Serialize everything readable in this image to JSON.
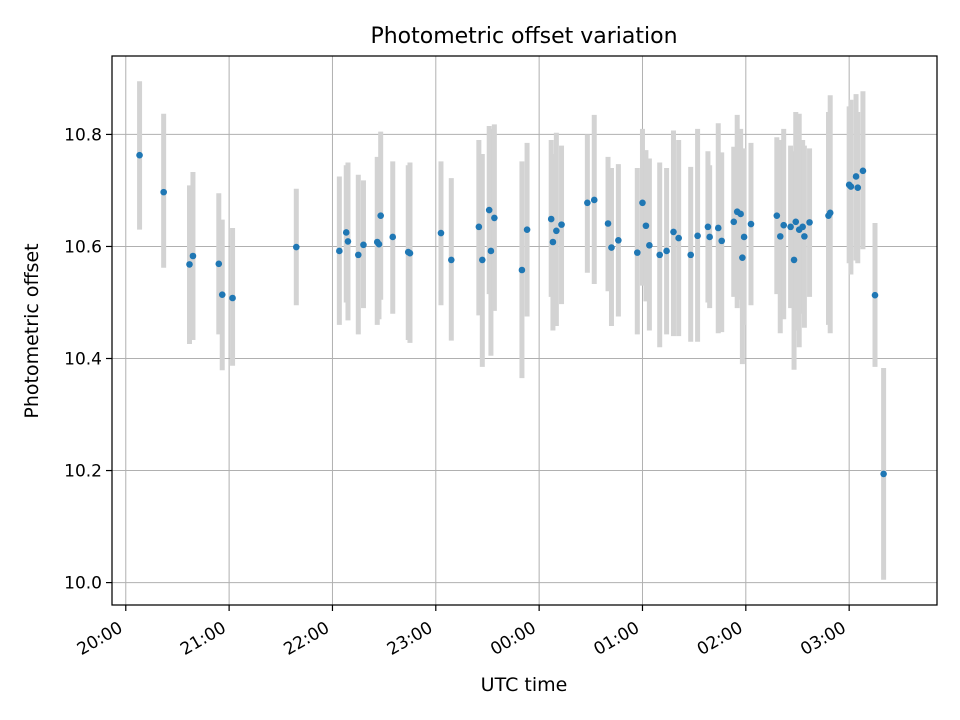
{
  "chart_data": {
    "type": "scatter",
    "title": "Photometric offset variation",
    "xlabel": "UTC time",
    "ylabel": "Photometric offset",
    "x_axis": {
      "kind": "time",
      "range": [
        "19:52",
        "03:51"
      ],
      "ticks": [
        "20:00",
        "21:00",
        "22:00",
        "23:00",
        "00:00",
        "01:00",
        "02:00",
        "03:00"
      ]
    },
    "y_axis": {
      "range": [
        9.96,
        10.94
      ],
      "ticks": [
        "10.0",
        "10.2",
        "10.4",
        "10.6",
        "10.8"
      ]
    },
    "grid": true,
    "colors": {
      "marker": "#1f77b4",
      "errorbar": "#d3d3d3",
      "grid": "#b0b0b0",
      "axes": "#000000"
    },
    "points": [
      {
        "t": "20:08",
        "y": 10.763,
        "lo": 10.63,
        "hi": 10.895
      },
      {
        "t": "20:22",
        "y": 10.697,
        "lo": 10.562,
        "hi": 10.837
      },
      {
        "t": "20:37",
        "y": 10.568,
        "lo": 10.426,
        "hi": 10.709
      },
      {
        "t": "20:39",
        "y": 10.583,
        "lo": 10.433,
        "hi": 10.733
      },
      {
        "t": "20:54",
        "y": 10.569,
        "lo": 10.443,
        "hi": 10.695
      },
      {
        "t": "20:56",
        "y": 10.514,
        "lo": 10.379,
        "hi": 10.648
      },
      {
        "t": "21:02",
        "y": 10.508,
        "lo": 10.387,
        "hi": 10.633
      },
      {
        "t": "21:39",
        "y": 10.599,
        "lo": 10.495,
        "hi": 10.703
      },
      {
        "t": "22:04",
        "y": 10.592,
        "lo": 10.46,
        "hi": 10.725
      },
      {
        "t": "22:08",
        "y": 10.625,
        "lo": 10.5,
        "hi": 10.745
      },
      {
        "t": "22:09",
        "y": 10.609,
        "lo": 10.468,
        "hi": 10.75
      },
      {
        "t": "22:15",
        "y": 10.585,
        "lo": 10.443,
        "hi": 10.728
      },
      {
        "t": "22:18",
        "y": 10.603,
        "lo": 10.49,
        "hi": 10.718
      },
      {
        "t": "22:26",
        "y": 10.608,
        "lo": 10.46,
        "hi": 10.76
      },
      {
        "t": "22:27",
        "y": 10.604,
        "lo": 10.47,
        "hi": 10.738
      },
      {
        "t": "22:28",
        "y": 10.655,
        "lo": 10.505,
        "hi": 10.805
      },
      {
        "t": "22:35",
        "y": 10.617,
        "lo": 10.48,
        "hi": 10.752
      },
      {
        "t": "22:44",
        "y": 10.59,
        "lo": 10.433,
        "hi": 10.745
      },
      {
        "t": "22:45",
        "y": 10.588,
        "lo": 10.428,
        "hi": 10.75
      },
      {
        "t": "23:03",
        "y": 10.624,
        "lo": 10.495,
        "hi": 10.752
      },
      {
        "t": "23:09",
        "y": 10.576,
        "lo": 10.432,
        "hi": 10.722
      },
      {
        "t": "23:25",
        "y": 10.635,
        "lo": 10.477,
        "hi": 10.79
      },
      {
        "t": "23:27",
        "y": 10.576,
        "lo": 10.385,
        "hi": 10.765
      },
      {
        "t": "23:31",
        "y": 10.665,
        "lo": 10.515,
        "hi": 10.815
      },
      {
        "t": "23:32",
        "y": 10.592,
        "lo": 10.405,
        "hi": 10.81
      },
      {
        "t": "23:34",
        "y": 10.651,
        "lo": 10.485,
        "hi": 10.818
      },
      {
        "t": "23:50",
        "y": 10.558,
        "lo": 10.365,
        "hi": 10.752
      },
      {
        "t": "23:53",
        "y": 10.63,
        "lo": 10.475,
        "hi": 10.785
      },
      {
        "t": "00:07",
        "y": 10.649,
        "lo": 10.51,
        "hi": 10.79
      },
      {
        "t": "00:08",
        "y": 10.608,
        "lo": 10.45,
        "hi": 10.765
      },
      {
        "t": "00:10",
        "y": 10.628,
        "lo": 10.458,
        "hi": 10.803
      },
      {
        "t": "00:13",
        "y": 10.639,
        "lo": 10.497,
        "hi": 10.78
      },
      {
        "t": "00:28",
        "y": 10.678,
        "lo": 10.553,
        "hi": 10.8
      },
      {
        "t": "00:32",
        "y": 10.683,
        "lo": 10.533,
        "hi": 10.835
      },
      {
        "t": "00:40",
        "y": 10.641,
        "lo": 10.52,
        "hi": 10.76
      },
      {
        "t": "00:42",
        "y": 10.598,
        "lo": 10.458,
        "hi": 10.74
      },
      {
        "t": "00:46",
        "y": 10.611,
        "lo": 10.475,
        "hi": 10.747
      },
      {
        "t": "00:57",
        "y": 10.589,
        "lo": 10.443,
        "hi": 10.74
      },
      {
        "t": "01:00",
        "y": 10.678,
        "lo": 10.53,
        "hi": 10.81
      },
      {
        "t": "01:02",
        "y": 10.637,
        "lo": 10.502,
        "hi": 10.772
      },
      {
        "t": "01:04",
        "y": 10.602,
        "lo": 10.45,
        "hi": 10.757
      },
      {
        "t": "01:10",
        "y": 10.585,
        "lo": 10.42,
        "hi": 10.75
      },
      {
        "t": "01:14",
        "y": 10.592,
        "lo": 10.443,
        "hi": 10.74
      },
      {
        "t": "01:18",
        "y": 10.626,
        "lo": 10.44,
        "hi": 10.807
      },
      {
        "t": "01:21",
        "y": 10.615,
        "lo": 10.44,
        "hi": 10.79
      },
      {
        "t": "01:28",
        "y": 10.585,
        "lo": 10.43,
        "hi": 10.742
      },
      {
        "t": "01:32",
        "y": 10.619,
        "lo": 10.43,
        "hi": 10.81
      },
      {
        "t": "01:38",
        "y": 10.635,
        "lo": 10.5,
        "hi": 10.77
      },
      {
        "t": "01:39",
        "y": 10.617,
        "lo": 10.49,
        "hi": 10.745
      },
      {
        "t": "01:44",
        "y": 10.633,
        "lo": 10.445,
        "hi": 10.82
      },
      {
        "t": "01:46",
        "y": 10.61,
        "lo": 10.447,
        "hi": 10.768
      },
      {
        "t": "01:53",
        "y": 10.644,
        "lo": 10.51,
        "hi": 10.778
      },
      {
        "t": "01:55",
        "y": 10.662,
        "lo": 10.49,
        "hi": 10.835
      },
      {
        "t": "01:57",
        "y": 10.658,
        "lo": 10.505,
        "hi": 10.81
      },
      {
        "t": "01:58",
        "y": 10.58,
        "lo": 10.39,
        "hi": 10.77
      },
      {
        "t": "01:59",
        "y": 10.617,
        "lo": 10.46,
        "hi": 10.775
      },
      {
        "t": "02:03",
        "y": 10.64,
        "lo": 10.495,
        "hi": 10.785
      },
      {
        "t": "02:18",
        "y": 10.655,
        "lo": 10.515,
        "hi": 10.795
      },
      {
        "t": "02:20",
        "y": 10.618,
        "lo": 10.445,
        "hi": 10.79
      },
      {
        "t": "02:22",
        "y": 10.638,
        "lo": 10.47,
        "hi": 10.81
      },
      {
        "t": "02:26",
        "y": 10.635,
        "lo": 10.49,
        "hi": 10.78
      },
      {
        "t": "02:28",
        "y": 10.576,
        "lo": 10.38,
        "hi": 10.77
      },
      {
        "t": "02:29",
        "y": 10.644,
        "lo": 10.45,
        "hi": 10.84
      },
      {
        "t": "02:31",
        "y": 10.63,
        "lo": 10.42,
        "hi": 10.837
      },
      {
        "t": "02:33",
        "y": 10.635,
        "lo": 10.48,
        "hi": 10.79
      },
      {
        "t": "02:34",
        "y": 10.618,
        "lo": 10.455,
        "hi": 10.78
      },
      {
        "t": "02:37",
        "y": 10.643,
        "lo": 10.51,
        "hi": 10.775
      },
      {
        "t": "02:48",
        "y": 10.655,
        "lo": 10.46,
        "hi": 10.84
      },
      {
        "t": "02:49",
        "y": 10.66,
        "lo": 10.445,
        "hi": 10.87
      },
      {
        "t": "03:00",
        "y": 10.71,
        "lo": 10.57,
        "hi": 10.85
      },
      {
        "t": "03:01",
        "y": 10.707,
        "lo": 10.55,
        "hi": 10.862
      },
      {
        "t": "03:04",
        "y": 10.725,
        "lo": 10.575,
        "hi": 10.872
      },
      {
        "t": "03:05",
        "y": 10.705,
        "lo": 10.57,
        "hi": 10.84
      },
      {
        "t": "03:08",
        "y": 10.735,
        "lo": 10.595,
        "hi": 10.877
      },
      {
        "t": "03:15",
        "y": 10.513,
        "lo": 10.385,
        "hi": 10.642
      },
      {
        "t": "03:20",
        "y": 10.194,
        "lo": 10.005,
        "hi": 10.383
      }
    ]
  }
}
